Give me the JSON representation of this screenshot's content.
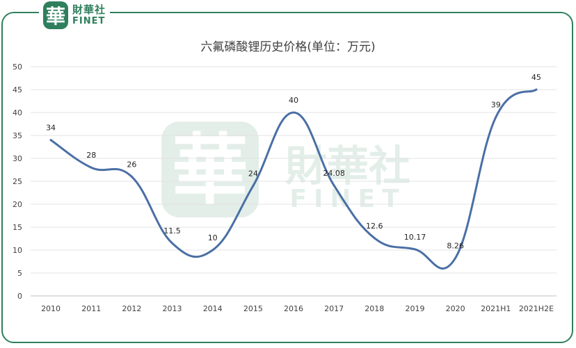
{
  "brand": {
    "badge_char": "華",
    "name_cn": "財華社",
    "name_en": "FINET",
    "color": "#2f7f5c"
  },
  "chart_data": {
    "type": "line",
    "title": "六氟磷酸锂历史价格(单位：万元)",
    "categories": [
      "2010",
      "2011",
      "2012",
      "2013",
      "2014",
      "2015",
      "2016",
      "2017",
      "2018",
      "2019",
      "2020",
      "2021H1",
      "2021H2E"
    ],
    "series": [
      {
        "values": [
          34,
          28,
          26,
          11.5,
          10,
          24,
          40,
          24.08,
          12.6,
          10.17,
          8.26,
          39,
          45
        ],
        "data_labels": [
          "34",
          "28",
          "26",
          "11.5",
          "10",
          "24",
          "40",
          "24.08",
          "12.6",
          "10.17",
          "8.26",
          "39",
          "45"
        ],
        "color": "#4a6fa5"
      }
    ],
    "ylim": [
      0,
      50
    ],
    "yticks": [
      0,
      5,
      10,
      15,
      20,
      25,
      30,
      35,
      40,
      45,
      50
    ],
    "grid": true,
    "legend": "none",
    "xlabel": "",
    "ylabel": ""
  }
}
